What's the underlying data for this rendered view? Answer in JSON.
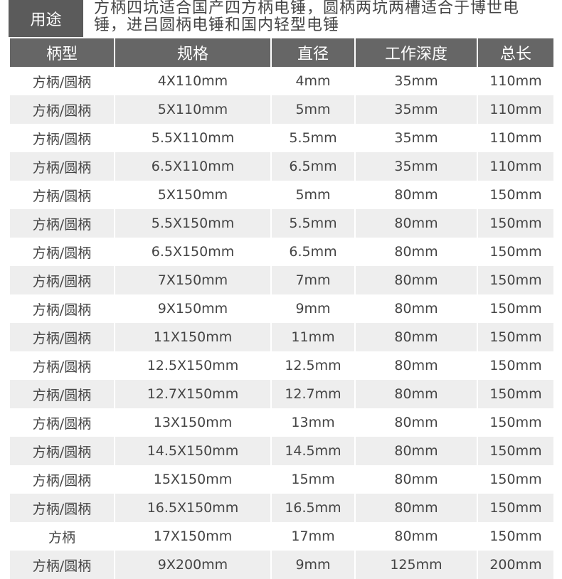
{
  "usage": {
    "label": "用途",
    "text": "方柄四坑适合国产四方柄电锤，圆柄两坑两槽适合于博世电锤，进吕圆柄电锤和国内轻型电锤"
  },
  "table": {
    "header": [
      "柄型",
      "规格",
      "直径",
      "工作深度",
      "总长"
    ],
    "rows": [
      [
        "方柄/圆柄",
        "4X110mm",
        "4mm",
        "35mm",
        "110mm"
      ],
      [
        "方柄/圆柄",
        "5X110mm",
        "5mm",
        "35mm",
        "110mm"
      ],
      [
        "方柄/圆柄",
        "5.5X110mm",
        "5.5mm",
        "35mm",
        "110mm"
      ],
      [
        "方柄/圆柄",
        "6.5X110mm",
        "6.5mm",
        "35mm",
        "110mm"
      ],
      [
        "方柄/圆柄",
        "5X150mm",
        "5mm",
        "80mm",
        "150mm"
      ],
      [
        "方柄/圆柄",
        "5.5X150mm",
        "5.5mm",
        "80mm",
        "150mm"
      ],
      [
        "方柄/圆柄",
        "6.5X150mm",
        "6.5mm",
        "80mm",
        "150mm"
      ],
      [
        "方柄/圆柄",
        "7X150mm",
        "7mm",
        "80mm",
        "150mm"
      ],
      [
        "方柄/圆柄",
        "9X150mm",
        "9mm",
        "80mm",
        "150mm"
      ],
      [
        "方柄/圆柄",
        "11X150mm",
        "11mm",
        "80mm",
        "150mm"
      ],
      [
        "方柄/圆柄",
        "12.5X150mm",
        "12.5mm",
        "80mm",
        "150mm"
      ],
      [
        "方柄/圆柄",
        "12.7X150mm",
        "12.7mm",
        "80mm",
        "150mm"
      ],
      [
        "方柄/圆柄",
        "13X150mm",
        "13mm",
        "80mm",
        "150mm"
      ],
      [
        "方柄/圆柄",
        "14.5X150mm",
        "14.5mm",
        "80mm",
        "150mm"
      ],
      [
        "方柄/圆柄",
        "15X150mm",
        "15mm",
        "80mm",
        "150mm"
      ],
      [
        "方柄/圆柄",
        "16.5X150mm",
        "16.5mm",
        "80mm",
        "150mm"
      ],
      [
        "方柄",
        "17X150mm",
        "17mm",
        "80mm",
        "150mm"
      ],
      [
        "方柄/圆柄",
        "9X200mm",
        "9mm",
        "125mm",
        "200mm"
      ]
    ]
  }
}
